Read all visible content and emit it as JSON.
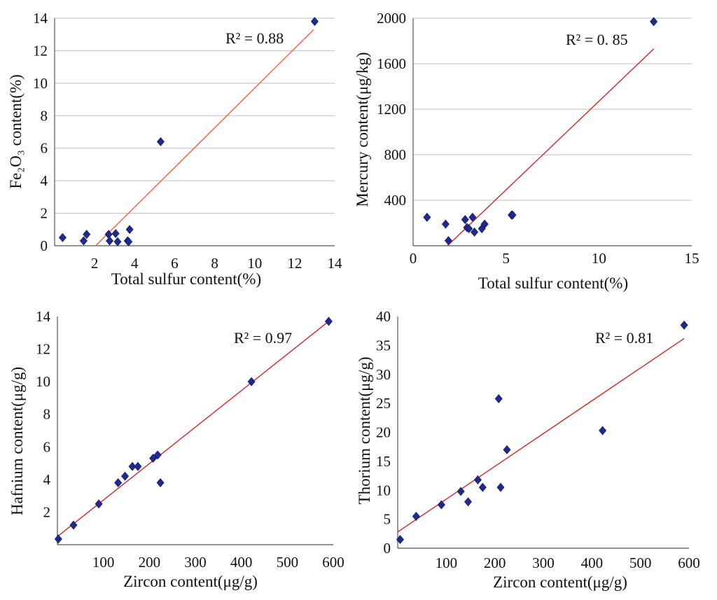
{
  "chart_data": [
    {
      "type": "scatter",
      "id": "fe2o3",
      "title": "",
      "xlabel": "Total sulfur content(%)",
      "ylabel": "Fe₂O₃ content(%)",
      "xlim": [
        0,
        14
      ],
      "ylim": [
        0,
        14
      ],
      "xticks": [
        2,
        4,
        6,
        8,
        10,
        12,
        14
      ],
      "xtick_labels": [
        "2",
        "4",
        "6",
        "8",
        "10",
        "12",
        "14"
      ],
      "yticks": [
        0,
        2,
        4,
        6,
        8,
        10,
        12,
        14
      ],
      "ytick_labels": [
        "0",
        "2",
        "4",
        "6",
        "8",
        "10",
        "12",
        "14"
      ],
      "grid": true,
      "r2_label": "R² = 0.88",
      "trendline": {
        "x": [
          2.05,
          12.95
        ],
        "y": [
          0,
          13.3
        ]
      },
      "trend_color": "#ff5a36",
      "marker_color": "#1f2a8c",
      "points": {
        "x": [
          0.4,
          1.45,
          1.6,
          2.7,
          2.75,
          3.05,
          3.15,
          3.65,
          3.7,
          3.75,
          5.3,
          13.0
        ],
        "y": [
          0.5,
          0.3,
          0.7,
          0.7,
          0.3,
          0.75,
          0.25,
          0.3,
          0.25,
          1.0,
          6.4,
          13.8
        ]
      }
    },
    {
      "type": "scatter",
      "id": "mercury",
      "title": "",
      "xlabel": "Total sulfur content(%)",
      "ylabel": "Mercury content(μg/kg)",
      "xlim": [
        0,
        15
      ],
      "ylim": [
        0,
        2000
      ],
      "xticks": [
        0,
        5,
        10,
        15
      ],
      "xtick_labels": [
        "0",
        "5",
        "10",
        "15"
      ],
      "yticks": [
        400,
        800,
        1200,
        1600,
        2000
      ],
      "ytick_labels": [
        "400",
        "800",
        "1200",
        "1600",
        "2000"
      ],
      "grid": true,
      "r2_label": "R²  =  0. 85",
      "trendline": {
        "x": [
          1.85,
          12.95
        ],
        "y": [
          0,
          1730
        ]
      },
      "trend_color": "#e02020",
      "marker_color": "#1f2a8c",
      "points": {
        "x": [
          0.75,
          1.75,
          1.9,
          2.8,
          2.9,
          3.0,
          3.2,
          3.3,
          3.7,
          3.85,
          5.3,
          5.35,
          12.95
        ],
        "y": [
          250,
          190,
          45,
          230,
          160,
          150,
          250,
          120,
          150,
          190,
          270,
          270,
          1970
        ]
      }
    },
    {
      "type": "scatter",
      "id": "hafnium",
      "title": "",
      "xlabel": "Zircon content(μg/g)",
      "ylabel": "Hafnium content(μg/g)",
      "xlim": [
        0,
        600
      ],
      "ylim": [
        0,
        14
      ],
      "xticks": [
        100,
        200,
        300,
        400,
        500,
        600
      ],
      "xtick_labels": [
        "100",
        "200",
        "300",
        "400",
        "500",
        "600"
      ],
      "yticks": [
        2,
        4,
        6,
        8,
        10,
        12,
        14
      ],
      "ytick_labels": [
        "2",
        "4",
        "6",
        "8",
        "10",
        "12",
        "14"
      ],
      "grid": false,
      "r2_label": "R² = 0.97",
      "trendline": {
        "x": [
          0,
          590
        ],
        "y": [
          0.5,
          13.7
        ]
      },
      "trend_color": "#e02020",
      "marker_color": "#1f2a8c",
      "points": {
        "x": [
          2,
          35,
          90,
          132,
          147,
          163,
          175,
          208,
          218,
          224,
          422,
          590
        ],
        "y": [
          0.35,
          1.2,
          2.5,
          3.8,
          4.2,
          4.8,
          4.8,
          5.3,
          5.5,
          3.8,
          10.0,
          13.7
        ]
      }
    },
    {
      "type": "scatter",
      "id": "thorium",
      "title": "",
      "xlabel": "Zircon content(μg/g)",
      "ylabel": "Thorium content(μg/g)",
      "xlim": [
        0,
        600
      ],
      "ylim": [
        0,
        40
      ],
      "xticks": [
        100,
        200,
        300,
        400,
        500,
        600
      ],
      "xtick_labels": [
        "100",
        "200",
        "300",
        "400",
        "500",
        "600"
      ],
      "yticks": [
        0,
        5,
        10,
        15,
        20,
        25,
        30,
        35,
        40
      ],
      "ytick_labels": [
        "0",
        "5",
        "10",
        "15",
        "20",
        "25",
        "30",
        "35",
        "40"
      ],
      "grid": false,
      "r2_label": "R² = 0.81",
      "trendline": {
        "x": [
          0,
          590
        ],
        "y": [
          2.8,
          36.2
        ]
      },
      "trend_color": "#e02020",
      "marker_color": "#1f2a8c",
      "points": {
        "x": [
          5,
          38,
          90,
          130,
          145,
          165,
          175,
          208,
          212,
          225,
          422,
          590
        ],
        "y": [
          1.5,
          5.5,
          7.5,
          9.8,
          8.0,
          11.8,
          10.5,
          25.8,
          10.5,
          17.0,
          20.3,
          38.5
        ]
      }
    }
  ]
}
